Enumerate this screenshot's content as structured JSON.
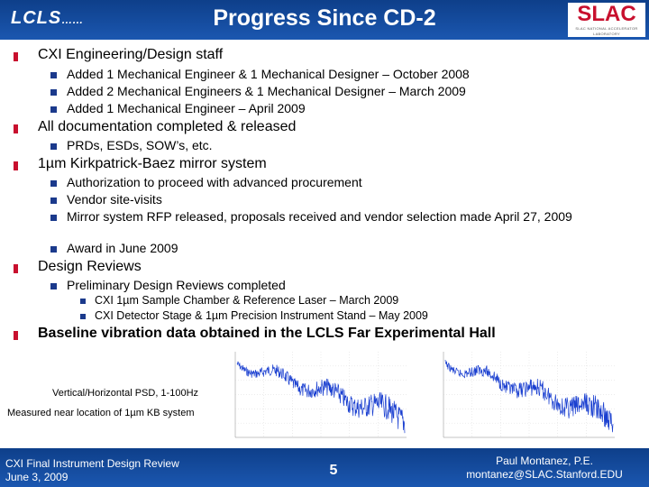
{
  "header": {
    "title": "Progress Since CD-2",
    "logo_left": "LCLS",
    "logo_left_suffix": "……",
    "logo_right": "SLAC",
    "logo_right_sub": "SLAC NATIONAL ACCELERATOR LABORATORY"
  },
  "sections": [
    {
      "heading": "CXI Engineering/Design staff",
      "items": [
        "Added 1 Mechanical Engineer & 1 Mechanical Designer – October 2008",
        "Added 2 Mechanical Engineers & 1 Mechanical Designer – March 2009",
        "Added 1 Mechanical Engineer – April 2009"
      ]
    },
    {
      "heading": "All documentation completed & released",
      "items": [
        "PRDs, ESDs, SOW’s, etc."
      ]
    },
    {
      "heading": "1µm Kirkpatrick-Baez mirror system",
      "items": [
        "Authorization to proceed with advanced procurement",
        "Vendor site-visits",
        "Mirror system RFP released, proposals received and vendor selection made April 27, 2009",
        "Award in June 2009"
      ]
    },
    {
      "heading": "Design Reviews",
      "items": [
        "Preliminary Design Reviews completed"
      ],
      "subitems": [
        "CXI 1µm Sample Chamber & Reference Laser – March 2009",
        "CXI Detector Stage & 1µm Precision Instrument Stand – May 2009"
      ]
    },
    {
      "heading": "Baseline vibration data obtained in the LCLS Far Experimental Hall"
    }
  ],
  "charts": {
    "caption_1": "Vertical/Horizontal PSD, 1-100Hz",
    "caption_2": "Measured near location of 1µm KB system"
  },
  "footer": {
    "left_line1": "CXI Final Instrument Design Review",
    "left_line2": "June 3, 2009",
    "page": "5",
    "right_line1": "Paul Montanez, P.E.",
    "right_line2": "montanez@SLAC.Stanford.EDU"
  },
  "colors": {
    "header_blue": "#1b57b0",
    "bullet_red": "#c8102e",
    "trace_blue": "#1a3fd0"
  }
}
